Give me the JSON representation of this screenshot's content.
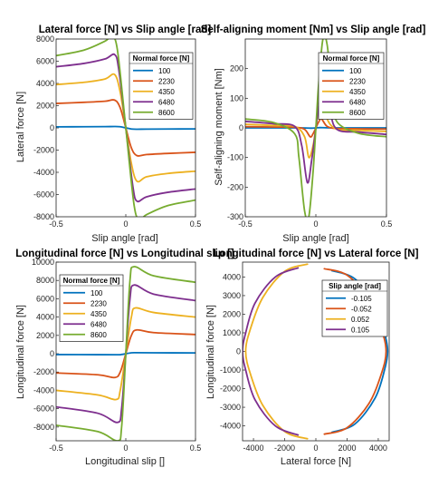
{
  "chart_data": [
    {
      "type": "line",
      "title": "Lateral force [N] vs Slip angle [rad]",
      "xlabel": "Slip angle [rad]",
      "ylabel": "Lateral force [N]",
      "xlim": [
        -0.5,
        0.5
      ],
      "ylim": [
        -8000,
        8000
      ],
      "xticks": [
        -0.5,
        0,
        0.5
      ],
      "yticks": [
        -8000,
        -6000,
        -4000,
        -2000,
        0,
        2000,
        4000,
        6000,
        8000
      ],
      "xtick_labels": [
        "-0.5",
        "0",
        "0.5"
      ],
      "ytick_labels": [
        "-8000",
        "-6000",
        "-4000",
        "-2000",
        "0",
        "2000",
        "4000",
        "6000",
        "8000"
      ],
      "legend": {
        "title": "Normal force [N]",
        "placement": "top-right"
      },
      "series": [
        {
          "name": "100",
          "x": [
            -0.5,
            -0.3,
            -0.15,
            -0.08,
            -0.04,
            0,
            0.04,
            0.08,
            0.15,
            0.3,
            0.5
          ],
          "y": [
            90,
            100,
            110,
            120,
            100,
            0,
            -100,
            -120,
            -110,
            -100,
            -90
          ]
        },
        {
          "name": "2230",
          "x": [
            -0.5,
            -0.3,
            -0.15,
            -0.08,
            -0.04,
            0,
            0.04,
            0.08,
            0.15,
            0.3,
            0.5
          ],
          "y": [
            2200,
            2300,
            2400,
            2500,
            1800,
            0,
            -1800,
            -2500,
            -2400,
            -2300,
            -2200
          ]
        },
        {
          "name": "4350",
          "x": [
            -0.5,
            -0.3,
            -0.15,
            -0.08,
            -0.04,
            0,
            0.04,
            0.08,
            0.15,
            0.3,
            0.5
          ],
          "y": [
            3900,
            4100,
            4400,
            4800,
            3200,
            0,
            -3200,
            -4800,
            -4400,
            -4100,
            -3900
          ]
        },
        {
          "name": "6480",
          "x": [
            -0.5,
            -0.3,
            -0.15,
            -0.08,
            -0.05,
            0,
            0.05,
            0.08,
            0.15,
            0.3,
            0.5
          ],
          "y": [
            5500,
            5800,
            6200,
            6600,
            5200,
            0,
            -5200,
            -6600,
            -6200,
            -5800,
            -5500
          ]
        },
        {
          "name": "8600",
          "x": [
            -0.5,
            -0.3,
            -0.15,
            -0.1,
            -0.06,
            0,
            0.06,
            0.1,
            0.15,
            0.3,
            0.5
          ],
          "y": [
            6500,
            7000,
            7800,
            8200,
            7000,
            0,
            -7000,
            -8200,
            -7800,
            -7000,
            -6500
          ]
        }
      ]
    },
    {
      "type": "line",
      "title": "Self-aligning moment [Nm] vs Slip angle [rad]",
      "xlabel": "Slip angle [rad]",
      "ylabel": "Self-aligning moment [Nm]",
      "xlim": [
        -0.5,
        0.5
      ],
      "ylim": [
        -300,
        300
      ],
      "xticks": [
        -0.5,
        0,
        0.5
      ],
      "yticks": [
        -300,
        -200,
        -100,
        0,
        100,
        200
      ],
      "xtick_labels": [
        "-0.5",
        "0",
        "0.5"
      ],
      "ytick_labels": [
        "-300",
        "-200",
        "-100",
        "0",
        "100",
        "200"
      ],
      "legend": {
        "title": "Normal force [N]",
        "placement": "top-right"
      },
      "series": [
        {
          "name": "100",
          "x": [
            -0.5,
            -0.3,
            -0.1,
            -0.03,
            0,
            0.03,
            0.1,
            0.3,
            0.5
          ],
          "y": [
            0,
            0,
            0,
            -1,
            0,
            1,
            0,
            0,
            0
          ]
        },
        {
          "name": "2230",
          "x": [
            -0.5,
            -0.3,
            -0.15,
            -0.08,
            -0.04,
            -0.02,
            0,
            0.02,
            0.04,
            0.08,
            0.15,
            0.3,
            0.5
          ],
          "y": [
            4,
            3,
            2,
            -5,
            -30,
            -20,
            0,
            20,
            30,
            5,
            -2,
            -3,
            -4
          ]
        },
        {
          "name": "4350",
          "x": [
            -0.5,
            -0.3,
            -0.15,
            -0.08,
            -0.05,
            -0.02,
            0,
            0.02,
            0.05,
            0.08,
            0.15,
            0.3,
            0.5
          ],
          "y": [
            12,
            8,
            5,
            -30,
            -100,
            -60,
            0,
            60,
            100,
            30,
            -5,
            -8,
            -12
          ]
        },
        {
          "name": "6480",
          "x": [
            -0.5,
            -0.3,
            -0.15,
            -0.1,
            -0.06,
            -0.03,
            0,
            0.03,
            0.06,
            0.1,
            0.15,
            0.3,
            0.5
          ],
          "y": [
            22,
            14,
            5,
            -60,
            -185,
            -110,
            0,
            110,
            185,
            60,
            -5,
            -14,
            -22
          ]
        },
        {
          "name": "8600",
          "x": [
            -0.5,
            -0.3,
            -0.15,
            -0.12,
            -0.08,
            -0.05,
            -0.02,
            0,
            0.02,
            0.05,
            0.08,
            0.12,
            0.15,
            0.3,
            0.5
          ],
          "y": [
            30,
            18,
            -20,
            -100,
            -280,
            -300,
            -150,
            0,
            150,
            300,
            280,
            100,
            20,
            -18,
            -30
          ]
        }
      ]
    },
    {
      "type": "line",
      "title": "Longitudinal force [N] vs Longitudinal slip []",
      "xlabel": "Longitudinal slip []",
      "ylabel": "Longitudinal force [N]",
      "xlim": [
        -0.5,
        0.5
      ],
      "ylim": [
        -9500,
        10000
      ],
      "xticks": [
        -0.5,
        0,
        0.5
      ],
      "yticks": [
        -8000,
        -6000,
        -4000,
        -2000,
        0,
        2000,
        4000,
        6000,
        8000,
        10000
      ],
      "xtick_labels": [
        "-0.5",
        "0",
        "0.5"
      ],
      "ytick_labels": [
        "-8000",
        "-6000",
        "-4000",
        "-2000",
        "0",
        "2000",
        "4000",
        "6000",
        "8000",
        "10000"
      ],
      "legend": {
        "title": "Normal force [N]",
        "placement": "top-left"
      },
      "series": [
        {
          "name": "100",
          "x": [
            -0.5,
            -0.2,
            -0.06,
            -0.03,
            0,
            0.03,
            0.06,
            0.2,
            0.5
          ],
          "y": [
            -90,
            -100,
            -110,
            -80,
            0,
            80,
            110,
            100,
            90
          ]
        },
        {
          "name": "2230",
          "x": [
            -0.5,
            -0.2,
            -0.08,
            -0.04,
            0,
            0.04,
            0.08,
            0.2,
            0.5
          ],
          "y": [
            -2100,
            -2300,
            -2600,
            -2000,
            0,
            2000,
            2600,
            2300,
            2100
          ]
        },
        {
          "name": "4350",
          "x": [
            -0.5,
            -0.2,
            -0.07,
            -0.04,
            0,
            0.04,
            0.07,
            0.2,
            0.5
          ],
          "y": [
            -4000,
            -4500,
            -5000,
            -4000,
            0,
            4000,
            5000,
            4500,
            4000
          ]
        },
        {
          "name": "6480",
          "x": [
            -0.5,
            -0.2,
            -0.06,
            -0.03,
            0,
            0.03,
            0.06,
            0.2,
            0.5
          ],
          "y": [
            -5800,
            -6500,
            -7500,
            -6000,
            0,
            6000,
            7500,
            6500,
            5800
          ]
        },
        {
          "name": "8600",
          "x": [
            -0.5,
            -0.2,
            -0.06,
            -0.03,
            0,
            0.03,
            0.06,
            0.2,
            0.5
          ],
          "y": [
            -7800,
            -8500,
            -9500,
            -8000,
            0,
            8000,
            9500,
            8500,
            7800
          ]
        }
      ]
    },
    {
      "type": "line",
      "title": "Longitudinal force [N] vs Lateral force [N]",
      "xlabel": "Lateral force [N]",
      "ylabel": "Longitudinal force [N]",
      "xlim": [
        -4700,
        4700
      ],
      "ylim": [
        -4800,
        4800
      ],
      "xticks": [
        -4000,
        -2000,
        0,
        2000,
        4000
      ],
      "yticks": [
        -4000,
        -3000,
        -2000,
        -1000,
        0,
        1000,
        2000,
        3000,
        4000
      ],
      "xtick_labels": [
        "-4000",
        "-2000",
        "0",
        "2000",
        "4000"
      ],
      "ytick_labels": [
        "-4000",
        "-3000",
        "-2000",
        "-1000",
        "0",
        "1000",
        "2000",
        "3000",
        "4000"
      ],
      "legend": {
        "title": "Slip angle [rad]",
        "placement": "top-right"
      },
      "series": [
        {
          "name": "-0.105",
          "x": [
            1000,
            2500,
            3800,
            4400,
            4600,
            4400,
            3800,
            2500,
            1000
          ],
          "y": [
            4350,
            3900,
            2500,
            1000,
            0,
            -1000,
            -2500,
            -3900,
            -4350
          ]
        },
        {
          "name": "-0.052",
          "x": [
            500,
            2000,
            3400,
            4200,
            4500,
            4200,
            3400,
            2000,
            500
          ],
          "y": [
            4450,
            4100,
            2800,
            1200,
            0,
            -1200,
            -2800,
            -4100,
            -4450
          ]
        },
        {
          "name": "0.052",
          "x": [
            -500,
            -2000,
            -3400,
            -4200,
            -4500,
            -4200,
            -3400,
            -2000,
            -500
          ],
          "y": [
            4700,
            4300,
            2900,
            1200,
            0,
            -1200,
            -2900,
            -4300,
            -4700
          ]
        },
        {
          "name": "0.105",
          "x": [
            -1100,
            -2600,
            -3900,
            -4500,
            -4700,
            -4500,
            -3900,
            -2600,
            -1100
          ],
          "y": [
            4500,
            4000,
            2600,
            1000,
            0,
            -1000,
            -2600,
            -4000,
            -4500
          ]
        }
      ]
    }
  ],
  "colors": [
    "#0072BD",
    "#D95319",
    "#EDB120",
    "#7E2F8E",
    "#77AC30"
  ]
}
